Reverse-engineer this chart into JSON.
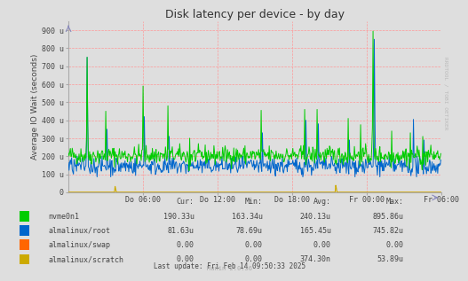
{
  "title": "Disk latency per device - by day",
  "ylabel": "Average IO Wait (seconds)",
  "background_color": "#dedede",
  "plot_bg_color": "#dedede",
  "grid_color": "#ff9999",
  "yticks": [
    0,
    100,
    200,
    300,
    400,
    500,
    600,
    700,
    800,
    900
  ],
  "ytick_labels": [
    "0",
    "100 u",
    "200 u",
    "300 u",
    "400 u",
    "500 u",
    "600 u",
    "700 u",
    "800 u",
    "900 u"
  ],
  "xtick_labels": [
    "Do 06:00",
    "Do 12:00",
    "Do 18:00",
    "Fr 00:00",
    "Fr 06:00"
  ],
  "ylim": [
    0,
    950
  ],
  "line_green_color": "#00cc00",
  "line_blue_color": "#0066cc",
  "line_orange_color": "#ff6600",
  "line_yellow_color": "#ccaa00",
  "legend_items": [
    {
      "label": "nvme0n1",
      "color": "#00cc00",
      "cur": "190.33u",
      "min": "163.34u",
      "avg": "240.13u",
      "max": "895.86u"
    },
    {
      "label": "almalinux/root",
      "color": "#0066cc",
      "cur": "81.63u",
      "min": "78.69u",
      "avg": "165.45u",
      "max": "745.82u"
    },
    {
      "label": "almalinux/swap",
      "color": "#ff6600",
      "cur": "0.00",
      "min": "0.00",
      "avg": "0.00",
      "max": "0.00"
    },
    {
      "label": "almalinux/scratch",
      "color": "#ccaa00",
      "cur": "0.00",
      "min": "0.00",
      "avg": "374.30n",
      "max": "53.89u"
    }
  ],
  "col_header": [
    "Cur:",
    "Min:",
    "Avg:",
    "Max:"
  ],
  "footer_text": "Last update: Fri Feb 14 09:50:33 2025",
  "footer_munin": "Munin 2.0.56",
  "right_label": "RRDTOOL / TOBI OETIKER",
  "seed": 42,
  "n_points": 600
}
